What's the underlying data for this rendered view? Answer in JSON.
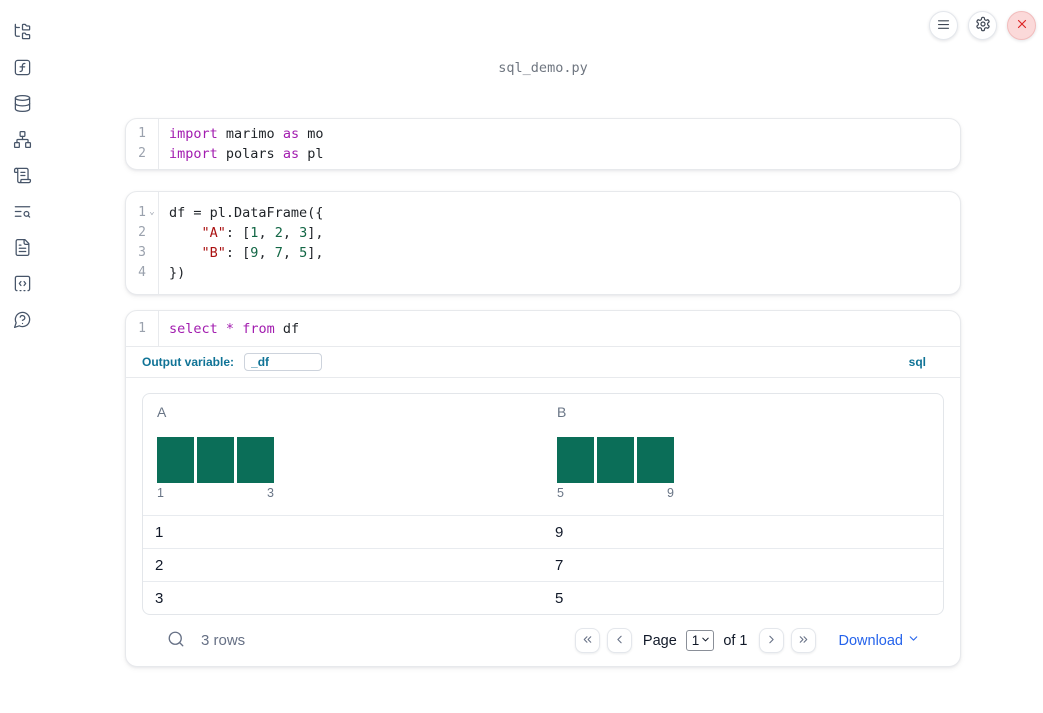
{
  "window": {
    "title": "sql_demo.py"
  },
  "colors": {
    "accent_blue": "#0f7396",
    "link_blue": "#2563eb",
    "bar_teal": "#0b6e58",
    "syntax_keyword": "#a21caf",
    "syntax_string": "#aa1111",
    "syntax_number": "#116644",
    "danger_red": "#dc2626"
  },
  "sidebar": {
    "items": [
      {
        "id": "file-tree"
      },
      {
        "id": "function-square"
      },
      {
        "id": "database"
      },
      {
        "id": "network"
      },
      {
        "id": "scroll-text"
      },
      {
        "id": "text-search"
      },
      {
        "id": "file-text"
      },
      {
        "id": "snippet-code"
      },
      {
        "id": "help-circle"
      }
    ]
  },
  "topbar": {
    "buttons": [
      {
        "id": "menu",
        "icon": "hamburger-menu-icon"
      },
      {
        "id": "settings",
        "icon": "gear-icon"
      },
      {
        "id": "shutdown",
        "icon": "close-icon"
      }
    ]
  },
  "cells": [
    {
      "type": "python",
      "lines": [
        {
          "num": "1",
          "tokens": [
            [
              "kw",
              "import"
            ],
            [
              "txt",
              " marimo "
            ],
            [
              "kw",
              "as"
            ],
            [
              "txt",
              " mo"
            ]
          ]
        },
        {
          "num": "2",
          "tokens": [
            [
              "kw",
              "import"
            ],
            [
              "txt",
              " polars "
            ],
            [
              "kw",
              "as"
            ],
            [
              "txt",
              " pl"
            ]
          ]
        }
      ]
    },
    {
      "type": "python",
      "lines": [
        {
          "num": "1",
          "fold": true,
          "tokens": [
            [
              "txt",
              "df = pl.DataFrame({"
            ]
          ]
        },
        {
          "num": "2",
          "tokens": [
            [
              "txt",
              "    "
            ],
            [
              "str",
              "\"A\""
            ],
            [
              "txt",
              ": ["
            ],
            [
              "num",
              "1"
            ],
            [
              "txt",
              ", "
            ],
            [
              "num",
              "2"
            ],
            [
              "txt",
              ", "
            ],
            [
              "num",
              "3"
            ],
            [
              "txt",
              "],"
            ]
          ]
        },
        {
          "num": "3",
          "tokens": [
            [
              "txt",
              "    "
            ],
            [
              "str",
              "\"B\""
            ],
            [
              "txt",
              ": ["
            ],
            [
              "num",
              "9"
            ],
            [
              "txt",
              ", "
            ],
            [
              "num",
              "7"
            ],
            [
              "txt",
              ", "
            ],
            [
              "num",
              "5"
            ],
            [
              "txt",
              "],"
            ]
          ]
        },
        {
          "num": "4",
          "tokens": [
            [
              "txt",
              "})"
            ]
          ]
        }
      ]
    },
    {
      "type": "sql",
      "lines": [
        {
          "num": "1",
          "tokens": [
            [
              "kw",
              "select"
            ],
            [
              "txt",
              " "
            ],
            [
              "kw",
              "*"
            ],
            [
              "txt",
              " "
            ],
            [
              "kw",
              "from"
            ],
            [
              "txt",
              " df"
            ]
          ]
        }
      ],
      "output_variable_label": "Output variable:",
      "output_variable_value": "_df",
      "language_badge": "sql"
    }
  ],
  "table": {
    "columns": [
      {
        "label": "A"
      },
      {
        "label": "B"
      }
    ],
    "rows": [
      [
        "1",
        "9"
      ],
      [
        "2",
        "7"
      ],
      [
        "3",
        "5"
      ]
    ],
    "footer": {
      "row_count": "3 rows",
      "page_label": "Page",
      "page_value": "1",
      "page_options": [
        "1"
      ],
      "of_label": "of 1",
      "download_label": "Download"
    }
  },
  "chart_data": [
    {
      "type": "bar",
      "title": "Column A value histogram",
      "bins": [
        "1",
        "2",
        "3"
      ],
      "values": [
        1,
        1,
        1
      ],
      "x_axis_labels": [
        "1",
        "3"
      ],
      "ylim": [
        0,
        1
      ],
      "grid": false,
      "color": "#0b6e58"
    },
    {
      "type": "bar",
      "title": "Column B value histogram",
      "bins": [
        "5",
        "7",
        "9"
      ],
      "values": [
        1,
        1,
        1
      ],
      "x_axis_labels": [
        "5",
        "9"
      ],
      "ylim": [
        0,
        1
      ],
      "grid": false,
      "color": "#0b6e58"
    }
  ]
}
